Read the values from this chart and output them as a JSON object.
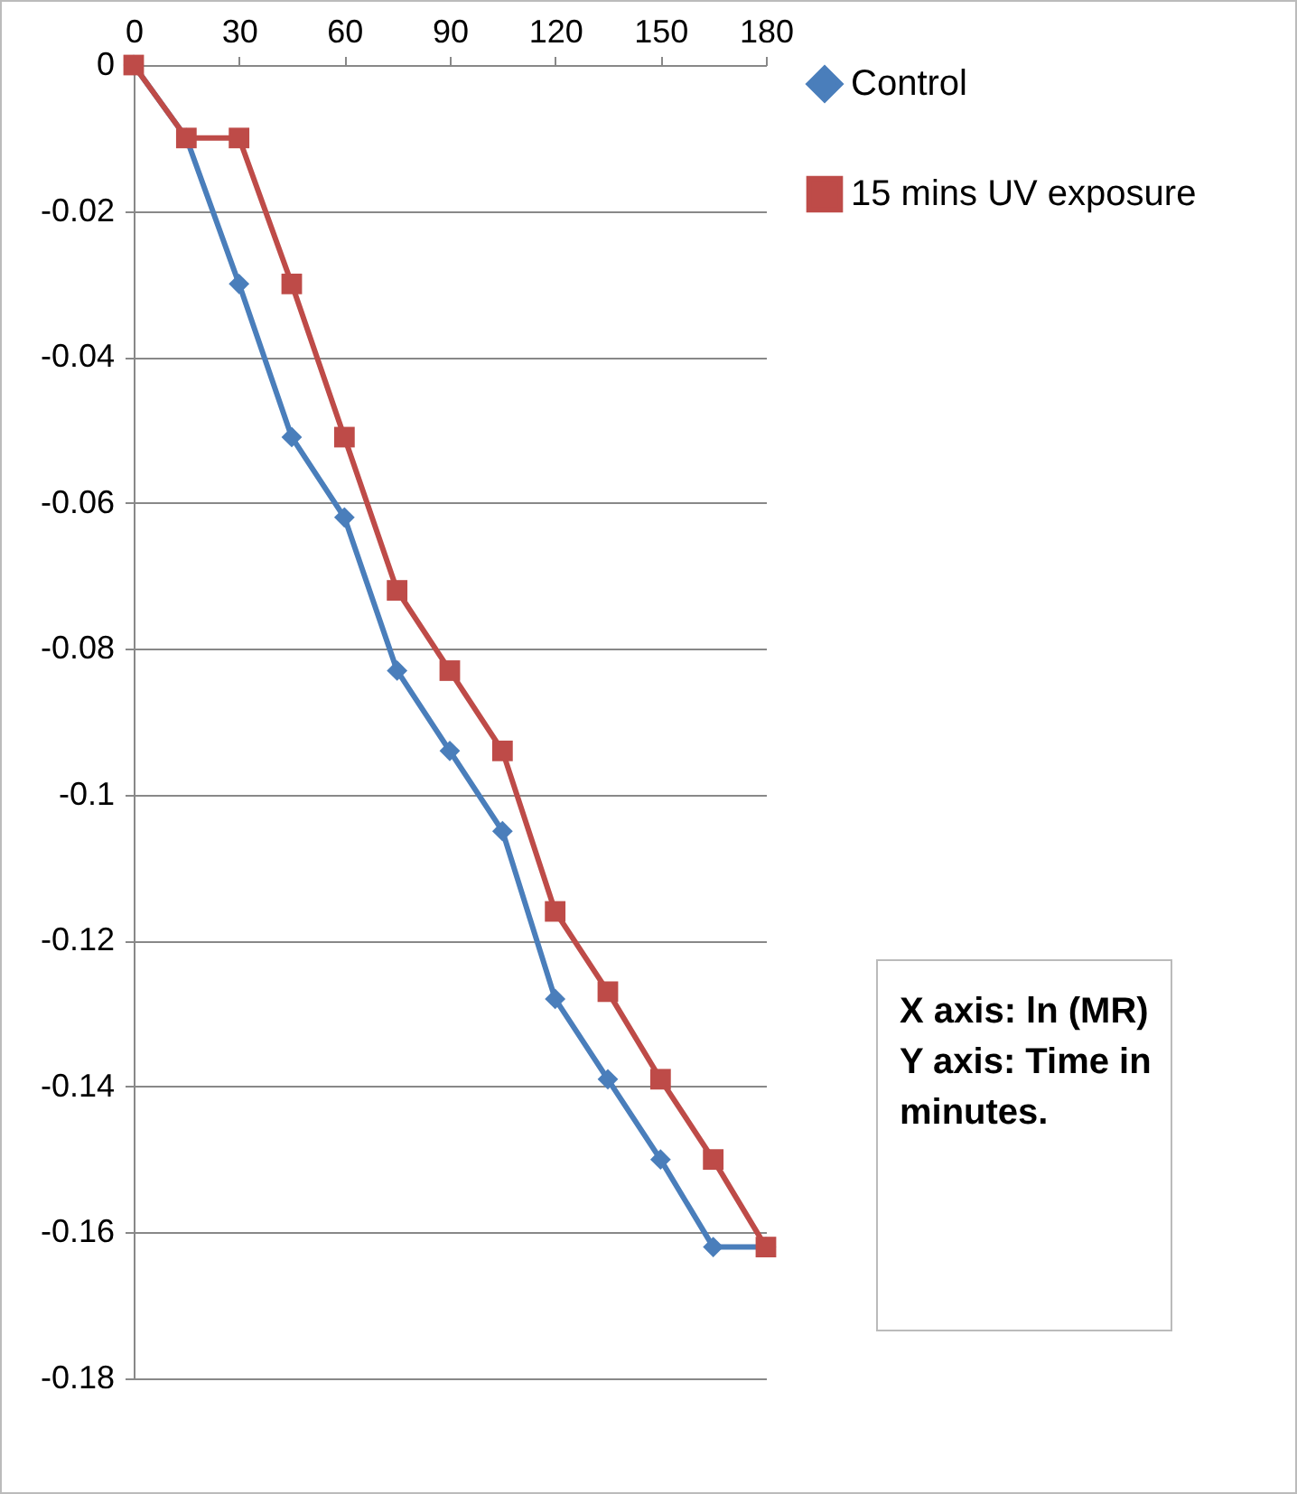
{
  "chart_data": {
    "type": "line",
    "x": [
      0,
      15,
      30,
      45,
      60,
      75,
      90,
      105,
      120,
      135,
      150,
      165,
      180
    ],
    "series": [
      {
        "name": "Control",
        "color": "#4a7ebb",
        "marker": "diamond",
        "values": [
          0,
          -0.01,
          -0.03,
          -0.051,
          -0.062,
          -0.083,
          -0.094,
          -0.105,
          -0.128,
          -0.139,
          -0.15,
          -0.162,
          -0.162
        ]
      },
      {
        "name": "15 mins UV exposure",
        "color": "#be4b48",
        "marker": "square",
        "values": [
          0,
          -0.01,
          -0.01,
          -0.03,
          -0.051,
          -0.072,
          -0.083,
          -0.094,
          -0.116,
          -0.127,
          -0.139,
          -0.15,
          -0.162
        ]
      }
    ],
    "xlim": [
      0,
      180
    ],
    "xticks": [
      0,
      30,
      60,
      90,
      120,
      150,
      180
    ],
    "ylim": [
      -0.18,
      0
    ],
    "yticks": [
      0,
      -0.02,
      -0.04,
      -0.06,
      -0.08,
      -0.1,
      -0.12,
      -0.14,
      -0.16,
      -0.18
    ],
    "grid": "y",
    "legend": "right",
    "annotations": [
      "X axis: ln (MR) Y axis: Time in minutes."
    ]
  }
}
